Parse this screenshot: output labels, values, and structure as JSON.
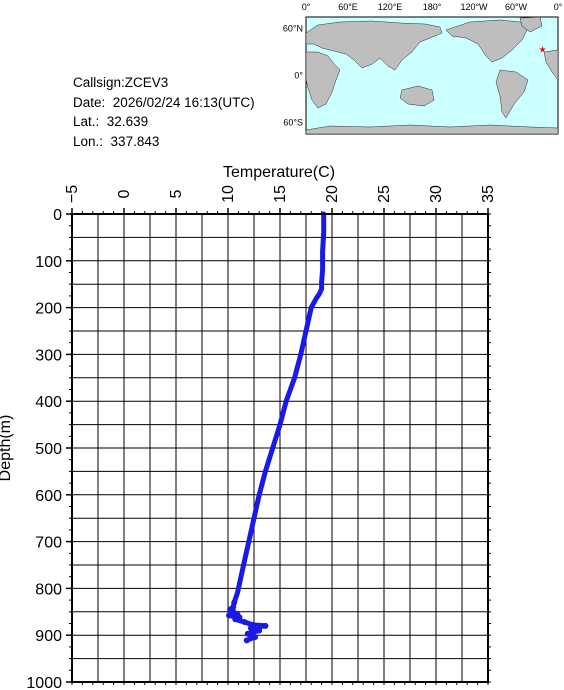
{
  "info": {
    "callsign": "Callsign:ZCEV3",
    "date_label": "Date:",
    "date_value": "2026/02/24 16:13(UTC)",
    "lat_label": "Lat.:",
    "lat_value": "32.639",
    "lon_label": "Lon.:",
    "lon_value": "337.843"
  },
  "map": {
    "top_ticks": [
      "0°",
      "60°E",
      "120°E",
      "180°",
      "120°W",
      "60°W",
      "0°"
    ],
    "left_ticks": [
      "60°N",
      "0°",
      "60°S"
    ],
    "ocean_color": "#ccffff",
    "land_color": "#bebebe",
    "marker_color": "#ff0000",
    "marker_icon": "star-icon",
    "marker_lon": 337.843,
    "marker_lat": 32.639
  },
  "chart_data": {
    "type": "line",
    "xlabel": "Temperature(C)",
    "ylabel": "Depth(m)",
    "xlim": [
      -5,
      35
    ],
    "ylim": [
      1000,
      0
    ],
    "x_ticks": [
      "−5",
      "0",
      "5",
      "10",
      "15",
      "20",
      "25",
      "30",
      "35"
    ],
    "y_ticks": [
      "0",
      "100",
      "200",
      "300",
      "400",
      "500",
      "600",
      "700",
      "800",
      "900",
      "1000"
    ],
    "grid": true,
    "series_color": "#1a1ae6",
    "series": [
      {
        "x": [
          19.2,
          19.2,
          19.1,
          19.1,
          19.0,
          19.0,
          18.8,
          18.5,
          18.0,
          17.7,
          17.3,
          17.0,
          16.4,
          15.6,
          15.0,
          14.3,
          13.6,
          13.0,
          12.5,
          12.0,
          11.6,
          11.2,
          10.9,
          10.6,
          10.5,
          10.2,
          10.5,
          10.9,
          10.1,
          11.1,
          10.7,
          11.6,
          12.4,
          13.6,
          12.2,
          13.0,
          11.9,
          12.6,
          11.8
        ],
        "y": [
          0,
          40,
          80,
          120,
          145,
          160,
          170,
          180,
          200,
          230,
          270,
          300,
          350,
          400,
          450,
          500,
          550,
          600,
          650,
          700,
          740,
          780,
          810,
          830,
          840,
          845,
          850,
          855,
          858,
          862,
          866,
          872,
          878,
          880,
          885,
          890,
          897,
          904,
          911
        ]
      }
    ]
  }
}
